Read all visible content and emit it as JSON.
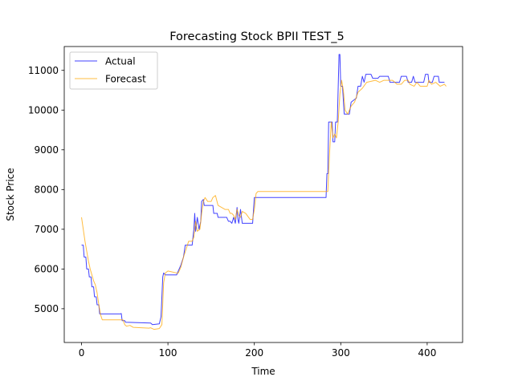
{
  "chart_data": {
    "type": "line",
    "title": "Forecasting Stock BPII TEST_5",
    "xlabel": "Time",
    "ylabel": "Stock Price",
    "xlim": [
      -20,
      441
    ],
    "ylim": [
      4150,
      11600
    ],
    "xticks": [
      0,
      100,
      200,
      300,
      400
    ],
    "yticks": [
      5000,
      6000,
      7000,
      8000,
      9000,
      10000,
      11000
    ],
    "legend_position": "top-left",
    "grid": false,
    "series": [
      {
        "name": "Actual",
        "color": "#0000ff",
        "points": [
          [
            0,
            6600
          ],
          [
            2,
            6600
          ],
          [
            3,
            6300
          ],
          [
            5,
            6300
          ],
          [
            6,
            6000
          ],
          [
            8,
            6000
          ],
          [
            9,
            5800
          ],
          [
            11,
            5800
          ],
          [
            12,
            5550
          ],
          [
            14,
            5550
          ],
          [
            15,
            5300
          ],
          [
            17,
            5300
          ],
          [
            18,
            5100
          ],
          [
            20,
            5100
          ],
          [
            21,
            4870
          ],
          [
            45,
            4870
          ],
          [
            46,
            4880
          ],
          [
            47,
            4700
          ],
          [
            50,
            4700
          ],
          [
            51,
            4660
          ],
          [
            80,
            4640
          ],
          [
            82,
            4600
          ],
          [
            90,
            4620
          ],
          [
            92,
            4800
          ],
          [
            94,
            5800
          ],
          [
            95,
            5900
          ],
          [
            97,
            5850
          ],
          [
            110,
            5850
          ],
          [
            112,
            5950
          ],
          [
            115,
            6100
          ],
          [
            118,
            6300
          ],
          [
            120,
            6600
          ],
          [
            128,
            6600
          ],
          [
            130,
            7000
          ],
          [
            131,
            7400
          ],
          [
            132,
            6950
          ],
          [
            134,
            7300
          ],
          [
            136,
            7000
          ],
          [
            138,
            7200
          ],
          [
            139,
            7700
          ],
          [
            141,
            7750
          ],
          [
            142,
            7600
          ],
          [
            152,
            7600
          ],
          [
            153,
            7400
          ],
          [
            157,
            7400
          ],
          [
            158,
            7300
          ],
          [
            168,
            7300
          ],
          [
            170,
            7200
          ],
          [
            172,
            7200
          ],
          [
            174,
            7150
          ],
          [
            176,
            7300
          ],
          [
            178,
            7150
          ],
          [
            180,
            7550
          ],
          [
            181,
            7250
          ],
          [
            182,
            7150
          ],
          [
            184,
            7500
          ],
          [
            186,
            7150
          ],
          [
            198,
            7150
          ],
          [
            200,
            7800
          ],
          [
            283,
            7800
          ],
          [
            284,
            8400
          ],
          [
            285,
            8400
          ],
          [
            286,
            9700
          ],
          [
            290,
            9700
          ],
          [
            291,
            9200
          ],
          [
            293,
            9200
          ],
          [
            294,
            9700
          ],
          [
            296,
            9700
          ],
          [
            298,
            11400
          ],
          [
            299,
            11400
          ],
          [
            300,
            10600
          ],
          [
            302,
            10600
          ],
          [
            304,
            9900
          ],
          [
            310,
            9900
          ],
          [
            312,
            10200
          ],
          [
            318,
            10300
          ],
          [
            320,
            10600
          ],
          [
            323,
            10600
          ],
          [
            325,
            10850
          ],
          [
            327,
            10700
          ],
          [
            329,
            10900
          ],
          [
            335,
            10900
          ],
          [
            337,
            10800
          ],
          [
            343,
            10800
          ],
          [
            345,
            10850
          ],
          [
            355,
            10850
          ],
          [
            357,
            10700
          ],
          [
            368,
            10700
          ],
          [
            370,
            10850
          ],
          [
            376,
            10850
          ],
          [
            378,
            10700
          ],
          [
            382,
            10700
          ],
          [
            384,
            10850
          ],
          [
            386,
            10700
          ],
          [
            396,
            10700
          ],
          [
            398,
            10900
          ],
          [
            401,
            10900
          ],
          [
            402,
            10700
          ],
          [
            406,
            10700
          ],
          [
            408,
            10850
          ],
          [
            413,
            10850
          ],
          [
            414,
            10700
          ],
          [
            420,
            10700
          ]
        ]
      },
      {
        "name": "Forecast",
        "color": "#ffa500",
        "points": [
          [
            0,
            7300
          ],
          [
            2,
            7000
          ],
          [
            4,
            6700
          ],
          [
            6,
            6450
          ],
          [
            8,
            6200
          ],
          [
            10,
            6000
          ],
          [
            12,
            5850
          ],
          [
            14,
            5700
          ],
          [
            16,
            5600
          ],
          [
            18,
            5400
          ],
          [
            20,
            5100
          ],
          [
            22,
            4850
          ],
          [
            24,
            4720
          ],
          [
            48,
            4720
          ],
          [
            50,
            4600
          ],
          [
            52,
            4560
          ],
          [
            56,
            4580
          ],
          [
            60,
            4530
          ],
          [
            78,
            4510
          ],
          [
            80,
            4520
          ],
          [
            84,
            4480
          ],
          [
            90,
            4500
          ],
          [
            93,
            4600
          ],
          [
            95,
            5650
          ],
          [
            97,
            5900
          ],
          [
            100,
            5950
          ],
          [
            110,
            5900
          ],
          [
            112,
            5900
          ],
          [
            115,
            6050
          ],
          [
            118,
            6300
          ],
          [
            121,
            6500
          ],
          [
            124,
            6700
          ],
          [
            128,
            6700
          ],
          [
            130,
            6800
          ],
          [
            132,
            7200
          ],
          [
            134,
            6950
          ],
          [
            137,
            7000
          ],
          [
            139,
            7400
          ],
          [
            141,
            7700
          ],
          [
            143,
            7800
          ],
          [
            146,
            7700
          ],
          [
            150,
            7700
          ],
          [
            152,
            7800
          ],
          [
            155,
            7850
          ],
          [
            158,
            7600
          ],
          [
            162,
            7550
          ],
          [
            166,
            7500
          ],
          [
            170,
            7500
          ],
          [
            172,
            7400
          ],
          [
            174,
            7400
          ],
          [
            176,
            7350
          ],
          [
            178,
            7250
          ],
          [
            180,
            7500
          ],
          [
            182,
            7350
          ],
          [
            184,
            7300
          ],
          [
            186,
            7450
          ],
          [
            190,
            7400
          ],
          [
            195,
            7250
          ],
          [
            198,
            7250
          ],
          [
            200,
            7500
          ],
          [
            202,
            7900
          ],
          [
            204,
            7950
          ],
          [
            285,
            7950
          ],
          [
            287,
            8900
          ],
          [
            289,
            9700
          ],
          [
            291,
            9300
          ],
          [
            293,
            9400
          ],
          [
            295,
            9300
          ],
          [
            297,
            9700
          ],
          [
            299,
            10400
          ],
          [
            301,
            10750
          ],
          [
            303,
            10500
          ],
          [
            305,
            10000
          ],
          [
            308,
            9900
          ],
          [
            312,
            10100
          ],
          [
            316,
            10200
          ],
          [
            320,
            10450
          ],
          [
            325,
            10550
          ],
          [
            330,
            10700
          ],
          [
            340,
            10750
          ],
          [
            345,
            10700
          ],
          [
            350,
            10750
          ],
          [
            355,
            10750
          ],
          [
            360,
            10750
          ],
          [
            365,
            10650
          ],
          [
            370,
            10650
          ],
          [
            374,
            10750
          ],
          [
            378,
            10750
          ],
          [
            380,
            10650
          ],
          [
            385,
            10600
          ],
          [
            388,
            10700
          ],
          [
            392,
            10600
          ],
          [
            400,
            10600
          ],
          [
            402,
            10750
          ],
          [
            405,
            10650
          ],
          [
            410,
            10700
          ],
          [
            415,
            10600
          ],
          [
            420,
            10650
          ],
          [
            422,
            10600
          ]
        ]
      }
    ]
  }
}
